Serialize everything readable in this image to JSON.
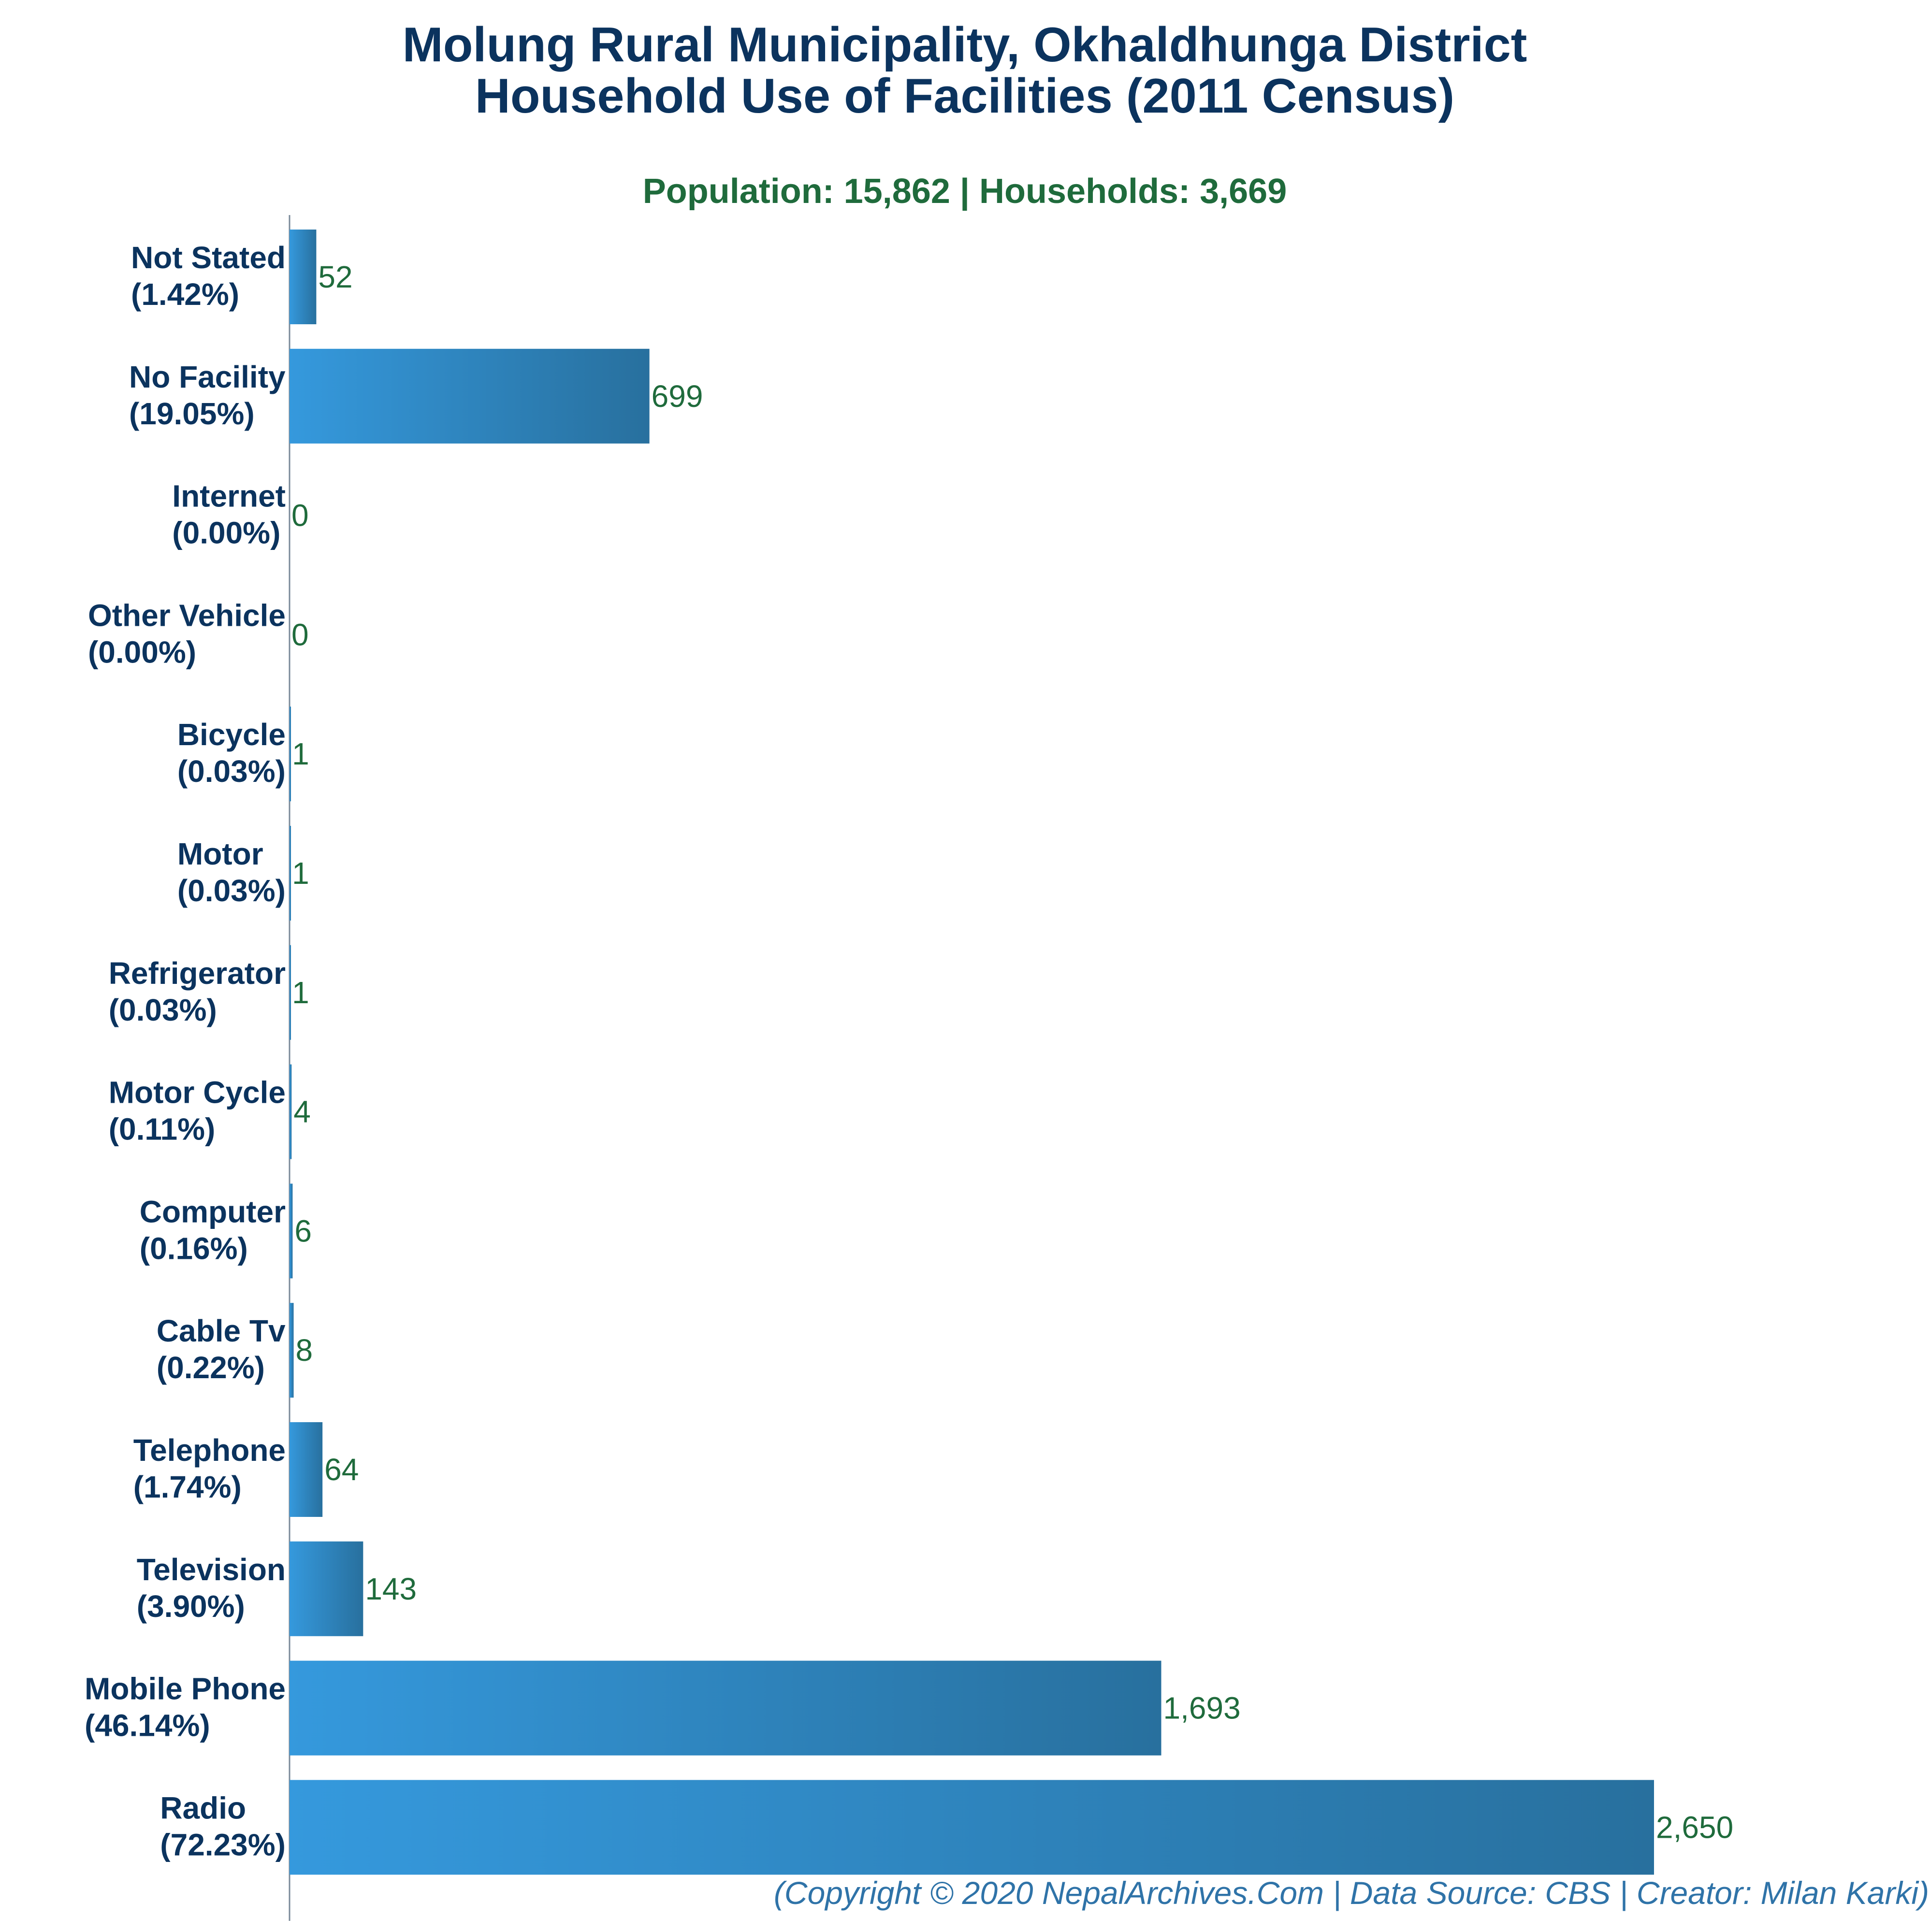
{
  "colors": {
    "title": "#0b335e",
    "subtitle": "#1f6b3c",
    "category_label": "#0b335e",
    "value_label": "#1f6b3c",
    "bar_light": "#3599dd",
    "bar_dark": "#28709e",
    "axis": "#7a8a99",
    "footer": "#2f73a8"
  },
  "chart_data": {
    "type": "bar",
    "orientation": "horizontal",
    "title": [
      "Molung Rural Municipality, Okhaldhunga District",
      "Household Use of Facilities (2011 Census)"
    ],
    "subtitle": "Population: 15,862 | Households: 3,669",
    "categories": [
      "Not Stated",
      "No Facility",
      "Internet",
      "Other Vehicle",
      "Bicycle",
      "Motor",
      "Refrigerator",
      "Motor Cycle",
      "Computer",
      "Cable Tv",
      "Telephone",
      "Television",
      "Mobile Phone",
      "Radio"
    ],
    "percent_labels": [
      "(1.42%)",
      "(19.05%)",
      "(0.00%)",
      "(0.00%)",
      "(0.03%)",
      "(0.03%)",
      "(0.03%)",
      "(0.11%)",
      "(0.16%)",
      "(0.22%)",
      "(1.74%)",
      "(3.90%)",
      "(46.14%)",
      "(72.23%)"
    ],
    "values": [
      52,
      699,
      0,
      0,
      1,
      1,
      1,
      4,
      6,
      8,
      64,
      143,
      1693,
      2650
    ],
    "value_labels": [
      "52",
      "699",
      "0",
      "0",
      "1",
      "1",
      "1",
      "4",
      "6",
      "8",
      "64",
      "143",
      "1,693",
      "2,650"
    ],
    "xlim": [
      0,
      2650
    ],
    "grid": false,
    "legend": "none"
  },
  "footer": "(Copyright © 2020 NepalArchives.Com | Data Source: CBS | Creator: Milan Karki)"
}
